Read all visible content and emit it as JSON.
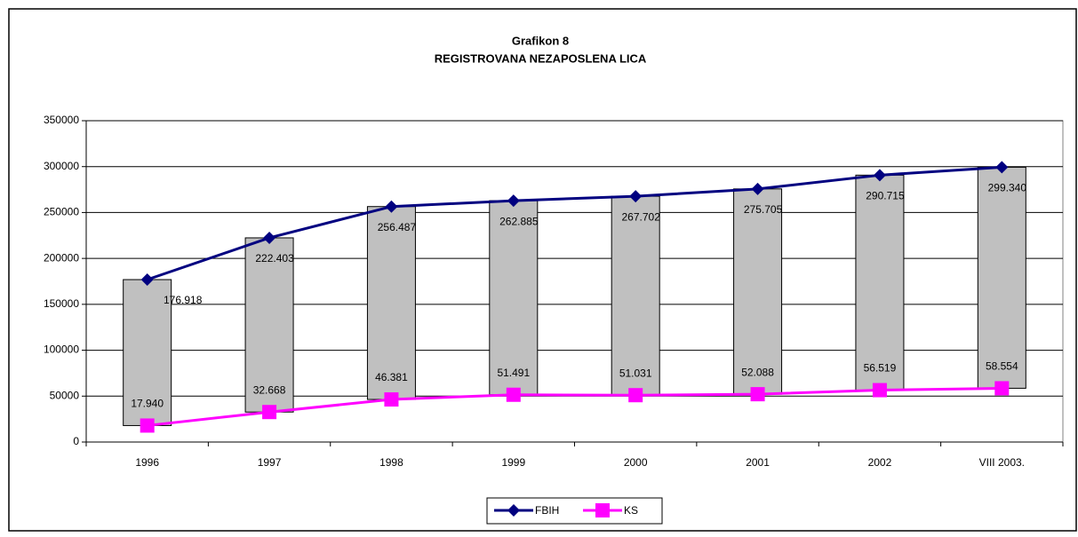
{
  "chart_data": {
    "type": "line",
    "title": "Grafikon 8",
    "subtitle": "REGISTROVANA NEZAPOSLENA LICA",
    "categories": [
      "1996",
      "1997",
      "1998",
      "1999",
      "2000",
      "2001",
      "2002",
      "VIII  2003."
    ],
    "series": [
      {
        "name": "FBIH",
        "color": "#000080",
        "marker": "diamond",
        "values": [
          176918,
          222403,
          256487,
          262885,
          267702,
          275705,
          290715,
          299340
        ],
        "value_labels": [
          "176.918",
          "222.403",
          "256.487",
          "262.885",
          "267.702",
          "275.705",
          "290.715",
          "299.340"
        ]
      },
      {
        "name": "KS",
        "color": "#ff00ff",
        "marker": "square",
        "values": [
          17940,
          32668,
          46381,
          51491,
          51031,
          52088,
          56519,
          58554
        ],
        "value_labels": [
          "17.940",
          "32.668",
          "46.381",
          "51.491",
          "51.031",
          "52.088",
          "56.519",
          "58.554"
        ]
      }
    ],
    "ylim": [
      0,
      350000
    ],
    "yticks": [
      0,
      50000,
      100000,
      150000,
      200000,
      250000,
      300000,
      350000
    ],
    "grid": true,
    "high_low_bars": true,
    "high_low_color": "#c0c0c0",
    "legend": "bottom"
  }
}
